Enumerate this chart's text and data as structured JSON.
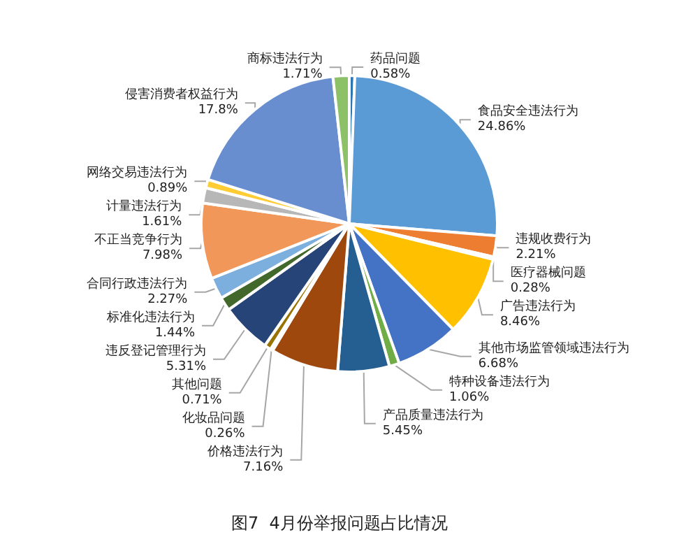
{
  "chart_data": {
    "type": "pie",
    "title": "图7  4月份举报问题占比情况",
    "categories": [
      "药品问题",
      "食品安全违法行为",
      "违规收费行为",
      "医疗器械问题",
      "广告违法行为",
      "其他市场监管领域违法行为",
      "特种设备违法行为",
      "产品质量违法行为",
      "价格违法行为",
      "化妆品问题",
      "其他问题",
      "违反登记管理行为",
      "标准化违法行为",
      "合同行政违法行为",
      "不正当竞争行为",
      "计量违法行为",
      "网络交易违法行为",
      "侵害消费者权益行为",
      "商标违法行为"
    ],
    "values": [
      0.58,
      24.86,
      2.21,
      0.28,
      8.46,
      6.68,
      1.06,
      5.45,
      7.16,
      0.26,
      0.71,
      5.31,
      1.44,
      2.27,
      7.98,
      1.61,
      0.89,
      17.8,
      1.71
    ],
    "value_labels": [
      "0.58%",
      "24.86%",
      "2.21%",
      "0.28%",
      "8.46%",
      "6.68%",
      "1.06%",
      "5.45%",
      "7.16%",
      "0.26%",
      "0.71%",
      "5.31%",
      "1.44%",
      "2.27%",
      "7.98%",
      "1.61%",
      "0.89%",
      "17.8%",
      "1.71%"
    ],
    "colors": [
      "#2e75b6",
      "#5b9bd5",
      "#ed7d31",
      "#a5a5a5",
      "#ffc000",
      "#4472c4",
      "#70ad47",
      "#255e91",
      "#9e480e",
      "#636363",
      "#997300",
      "#264478",
      "#43682b",
      "#7cafdd",
      "#f1975a",
      "#b7b7b7",
      "#ffcd33",
      "#698ed0",
      "#8cc168"
    ]
  }
}
